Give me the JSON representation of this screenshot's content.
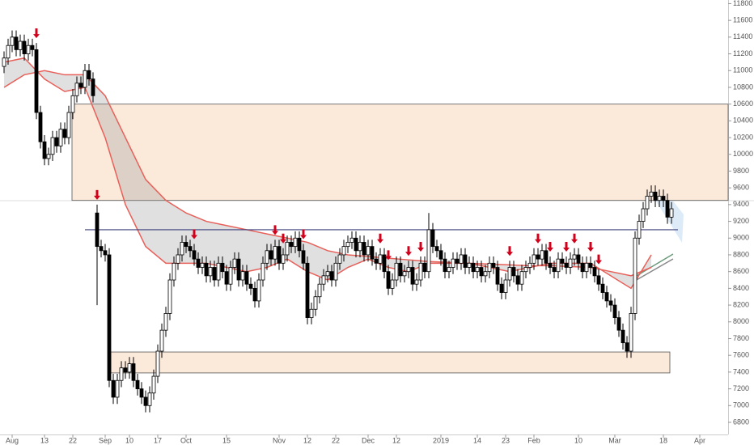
{
  "chart_data": {
    "type": "candlestick",
    "categories": [
      null,
      null,
      "Aug",
      null,
      null,
      null,
      null,
      null,
      null,
      null,
      "13",
      null,
      null,
      null,
      null,
      null,
      null,
      "22",
      null,
      null,
      null,
      null,
      null,
      null,
      null,
      "Sep",
      null,
      null,
      null,
      null,
      null,
      "10",
      null,
      null,
      null,
      null,
      null,
      null,
      "17",
      null,
      null,
      null,
      null,
      null,
      null,
      "Oct",
      null,
      null,
      null,
      null,
      null,
      null,
      null,
      null,
      null,
      "15",
      null,
      null,
      null,
      null,
      null,
      null,
      null,
      null,
      null,
      null,
      null,
      null,
      "Nov",
      null,
      null,
      null,
      null,
      null,
      null,
      "12",
      null,
      null,
      null,
      null,
      null,
      null,
      "22",
      null,
      null,
      null,
      null,
      null,
      null,
      null,
      "Dec",
      null,
      null,
      null,
      null,
      null,
      null,
      "12",
      null,
      null,
      null,
      null,
      null,
      null,
      null,
      null,
      null,
      null,
      "2019",
      null,
      null,
      null,
      null,
      null,
      null,
      null,
      null,
      "14",
      null,
      null,
      null,
      null,
      null,
      null,
      "23",
      null,
      null,
      null,
      null,
      null,
      null,
      "Feb",
      null,
      null,
      null,
      null,
      null,
      null,
      null,
      null,
      null,
      null,
      "10",
      null,
      null,
      null,
      null,
      null,
      null,
      null,
      null,
      "Mar",
      null,
      null,
      null,
      null,
      null,
      null,
      null,
      null,
      null,
      null,
      null,
      "18",
      null,
      null,
      null,
      null,
      null,
      null,
      null,
      null,
      "Apr",
      null,
      null,
      null,
      null,
      null,
      null,
      null
    ],
    "open": [
      11050,
      11150,
      11300,
      11400,
      11250,
      11350,
      11200,
      11300,
      11250,
      10500,
      10150,
      9950,
      10000,
      10200,
      10100,
      10300,
      10200,
      10500,
      10700,
      10850,
      10800,
      11000,
      10900,
      9300,
      8900,
      8850,
      8800,
      7300,
      7100,
      7300,
      7450,
      7400,
      7500,
      7300,
      7200,
      7100,
      7000,
      7150,
      7350,
      7650,
      7900,
      8100,
      8500,
      8700,
      8800,
      8950,
      8900,
      8850,
      8750,
      8650,
      8700,
      8550,
      8650,
      8500,
      8700,
      8600,
      8450,
      8650,
      8750,
      8500,
      8600,
      8450,
      8400,
      8250,
      8500,
      8700,
      8850,
      8750,
      8900,
      8700,
      8800,
      8950,
      8900,
      9000,
      8850,
      8700,
      8050,
      8150,
      8300,
      8450,
      8550,
      8600,
      8500,
      8700,
      8800,
      8900,
      8950,
      9000,
      8850,
      8950,
      8800,
      8900,
      8750,
      8700,
      8800,
      8600,
      8400,
      8500,
      8700,
      8550,
      8600,
      8650,
      8450,
      8500,
      8700,
      8600,
      9100,
      8900,
      8850,
      8750,
      8600,
      8650,
      8750,
      8700,
      8800,
      8650,
      8700,
      8600,
      8650,
      8550,
      8600,
      8700,
      8650,
      8450,
      8350,
      8500,
      8650,
      8550,
      8450,
      8600,
      8650,
      8700,
      8800,
      8750,
      8850,
      8700,
      8650,
      8600,
      8750,
      8700,
      8650,
      8750,
      8800,
      8700,
      8600,
      8700,
      8650,
      8550,
      8450,
      8350,
      8250,
      8200,
      8050,
      7900,
      7750,
      7650,
      8100,
      9000,
      9200,
      9350,
      9500,
      9550,
      9450,
      9500,
      9450,
      9250,
      null,
      null,
      null,
      null,
      null,
      null,
      null,
      null,
      null,
      null,
      null,
      null,
      null,
      null
    ],
    "high": [
      11230,
      11380,
      11480,
      11480,
      11430,
      11430,
      11380,
      11380,
      11330,
      10580,
      10230,
      10080,
      10280,
      10280,
      10380,
      10380,
      10580,
      10780,
      10930,
      10930,
      11080,
      11080,
      10980,
      9400,
      8980,
      8930,
      8880,
      7380,
      7380,
      7530,
      7530,
      7580,
      7580,
      7380,
      7280,
      7180,
      7230,
      7430,
      7730,
      7980,
      8180,
      8580,
      8780,
      8880,
      9030,
      9030,
      8980,
      8930,
      8830,
      8780,
      8780,
      8730,
      8730,
      8780,
      8780,
      8680,
      8730,
      8830,
      8830,
      8680,
      8680,
      8530,
      8480,
      8580,
      8780,
      8930,
      8930,
      8980,
      8980,
      8880,
      9030,
      9030,
      9080,
      9080,
      8930,
      8780,
      8230,
      8380,
      8530,
      8630,
      8680,
      8680,
      8780,
      8880,
      8980,
      9030,
      9080,
      9080,
      9030,
      9030,
      8980,
      8980,
      8830,
      8880,
      8880,
      8680,
      8580,
      8780,
      8780,
      8680,
      8730,
      8730,
      8580,
      8780,
      8780,
      9300,
      9180,
      8980,
      8930,
      8830,
      8730,
      8830,
      8830,
      8880,
      8880,
      8780,
      8780,
      8730,
      8730,
      8680,
      8780,
      8780,
      8730,
      8530,
      8580,
      8730,
      8730,
      8630,
      8680,
      8730,
      8780,
      8880,
      8880,
      8930,
      8930,
      8780,
      8730,
      8830,
      8830,
      8780,
      8830,
      8880,
      8880,
      8780,
      8780,
      8780,
      8730,
      8630,
      8530,
      8430,
      8330,
      8280,
      8130,
      7980,
      7830,
      8180,
      9080,
      9280,
      9430,
      9580,
      9630,
      9630,
      9580,
      9580,
      9530,
      9430,
      null,
      null,
      null,
      null,
      null,
      null,
      null,
      null,
      null,
      null,
      null,
      null,
      null,
      null
    ],
    "low": [
      10970,
      11070,
      11220,
      11170,
      11170,
      11120,
      11120,
      11170,
      10420,
      10070,
      9870,
      9870,
      9920,
      10020,
      10020,
      10120,
      10120,
      10420,
      10620,
      10720,
      10720,
      10820,
      10620,
      8200,
      8770,
      8720,
      7220,
      7020,
      7020,
      7220,
      7320,
      7320,
      7220,
      7120,
      7020,
      6920,
      6920,
      7070,
      7270,
      7570,
      7820,
      8020,
      8420,
      8620,
      8720,
      8820,
      8770,
      8670,
      8570,
      8570,
      8470,
      8470,
      8420,
      8420,
      8520,
      8370,
      8370,
      8570,
      8420,
      8420,
      8370,
      8320,
      8170,
      8170,
      8420,
      8620,
      8670,
      8670,
      8620,
      8620,
      8720,
      8820,
      8820,
      8770,
      8620,
      7970,
      7970,
      8070,
      8220,
      8370,
      8470,
      8420,
      8420,
      8620,
      8720,
      8820,
      8870,
      8770,
      8770,
      8720,
      8720,
      8670,
      8620,
      8620,
      8520,
      8320,
      8320,
      8420,
      8470,
      8470,
      8520,
      8370,
      8370,
      8420,
      8520,
      8520,
      8820,
      8770,
      8670,
      8520,
      8520,
      8570,
      8620,
      8620,
      8570,
      8570,
      8520,
      8520,
      8470,
      8470,
      8520,
      8570,
      8370,
      8270,
      8270,
      8420,
      8470,
      8370,
      8370,
      8520,
      8570,
      8620,
      8670,
      8670,
      8620,
      8570,
      8520,
      8520,
      8620,
      8570,
      8570,
      8670,
      8620,
      8520,
      8520,
      8570,
      8470,
      8370,
      8270,
      8170,
      8120,
      7970,
      7820,
      7670,
      7570,
      7570,
      8020,
      8920,
      9120,
      9270,
      9420,
      9370,
      9370,
      9370,
      9170,
      9170,
      null,
      null,
      null,
      null,
      null,
      null,
      null,
      null,
      null,
      null,
      null,
      null,
      null,
      null
    ],
    "close": [
      11150,
      11300,
      11400,
      11250,
      11350,
      11200,
      11300,
      11250,
      10500,
      10150,
      9950,
      10000,
      10200,
      10100,
      10300,
      10200,
      10500,
      10700,
      10850,
      10800,
      11000,
      10900,
      10700,
      8900,
      8850,
      8800,
      7300,
      7100,
      7300,
      7450,
      7400,
      7500,
      7300,
      7200,
      7100,
      7000,
      7150,
      7350,
      7650,
      7900,
      8100,
      8500,
      8700,
      8800,
      8950,
      8900,
      8850,
      8750,
      8650,
      8700,
      8550,
      8650,
      8500,
      8700,
      8600,
      8450,
      8650,
      8750,
      8500,
      8600,
      8450,
      8400,
      8250,
      8500,
      8700,
      8850,
      8750,
      8900,
      8700,
      8800,
      8950,
      8900,
      9000,
      8850,
      8700,
      8050,
      8150,
      8300,
      8450,
      8550,
      8600,
      8500,
      8700,
      8800,
      8900,
      8950,
      9000,
      8850,
      8950,
      8800,
      8900,
      8750,
      8700,
      8800,
      8600,
      8400,
      8500,
      8700,
      8550,
      8600,
      8650,
      8450,
      8500,
      8700,
      8600,
      9100,
      8900,
      8850,
      8750,
      8600,
      8650,
      8750,
      8700,
      8800,
      8650,
      8700,
      8600,
      8650,
      8550,
      8600,
      8700,
      8650,
      8450,
      8350,
      8500,
      8650,
      8550,
      8450,
      8600,
      8650,
      8700,
      8800,
      8750,
      8850,
      8700,
      8650,
      8600,
      8750,
      8700,
      8650,
      8750,
      8800,
      8700,
      8600,
      8700,
      8650,
      8550,
      8450,
      8350,
      8250,
      8200,
      8050,
      7900,
      7750,
      7650,
      8100,
      9000,
      9200,
      9350,
      9500,
      9550,
      9450,
      9500,
      9450,
      9250,
      9350,
      null,
      null,
      null,
      null,
      null,
      null,
      null,
      null,
      null,
      null,
      null,
      null,
      null,
      null
    ],
    "up_color": "#ffffff",
    "down_color": "#000000",
    "averages": [
      {
        "color": "#e8605a",
        "x": [
          0,
          5,
          10,
          15,
          20,
          25,
          30,
          35,
          40,
          45,
          50,
          55,
          60,
          65,
          70,
          75,
          80,
          85,
          90,
          95,
          100,
          105,
          110,
          115,
          120,
          125,
          130,
          135,
          140,
          145,
          150,
          155,
          160
        ],
        "values": [
          11100,
          11150,
          10900,
          10750,
          10800,
          10200,
          9400,
          8900,
          8700,
          8700,
          8700,
          8650,
          8600,
          8650,
          8750,
          8600,
          8500,
          8650,
          8750,
          8650,
          8600,
          8700,
          8700,
          8700,
          8650,
          8600,
          8650,
          8700,
          8700,
          8700,
          8550,
          8400,
          8800
        ]
      },
      {
        "color": "#e8605a",
        "x": [
          0,
          5,
          10,
          15,
          20,
          25,
          30,
          35,
          40,
          45,
          50,
          55,
          60,
          65,
          70,
          75,
          80,
          85,
          90,
          95,
          100,
          105,
          110,
          115,
          120,
          125,
          130,
          135,
          140,
          145,
          150,
          155,
          160
        ],
        "values": [
          10800,
          10950,
          11000,
          10950,
          10950,
          10700,
          10200,
          9700,
          9450,
          9300,
          9200,
          9150,
          9100,
          9050,
          9000,
          8950,
          8850,
          8800,
          8780,
          8760,
          8740,
          8720,
          8710,
          8700,
          8690,
          8680,
          8670,
          8670,
          8660,
          8650,
          8600,
          8550,
          8650
        ]
      }
    ],
    "level": 9100,
    "zones": [
      {
        "from": 9450,
        "to": 10600
      },
      {
        "from": 7390,
        "to": 7640
      }
    ],
    "signals": [
      8,
      23,
      47,
      67,
      69,
      74,
      93,
      95,
      100,
      103,
      125,
      132,
      135,
      139,
      141,
      145,
      147
    ],
    "ylim": [
      6655,
      11843
    ],
    "yticks": [
      6800,
      7000,
      7200,
      7400,
      7600,
      7800,
      8000,
      8200,
      8400,
      8600,
      8800,
      9000,
      9200,
      9400,
      9600,
      9800,
      10000,
      10200,
      10400,
      10600,
      10800,
      11000,
      11200,
      11400,
      11600,
      11800
    ]
  }
}
